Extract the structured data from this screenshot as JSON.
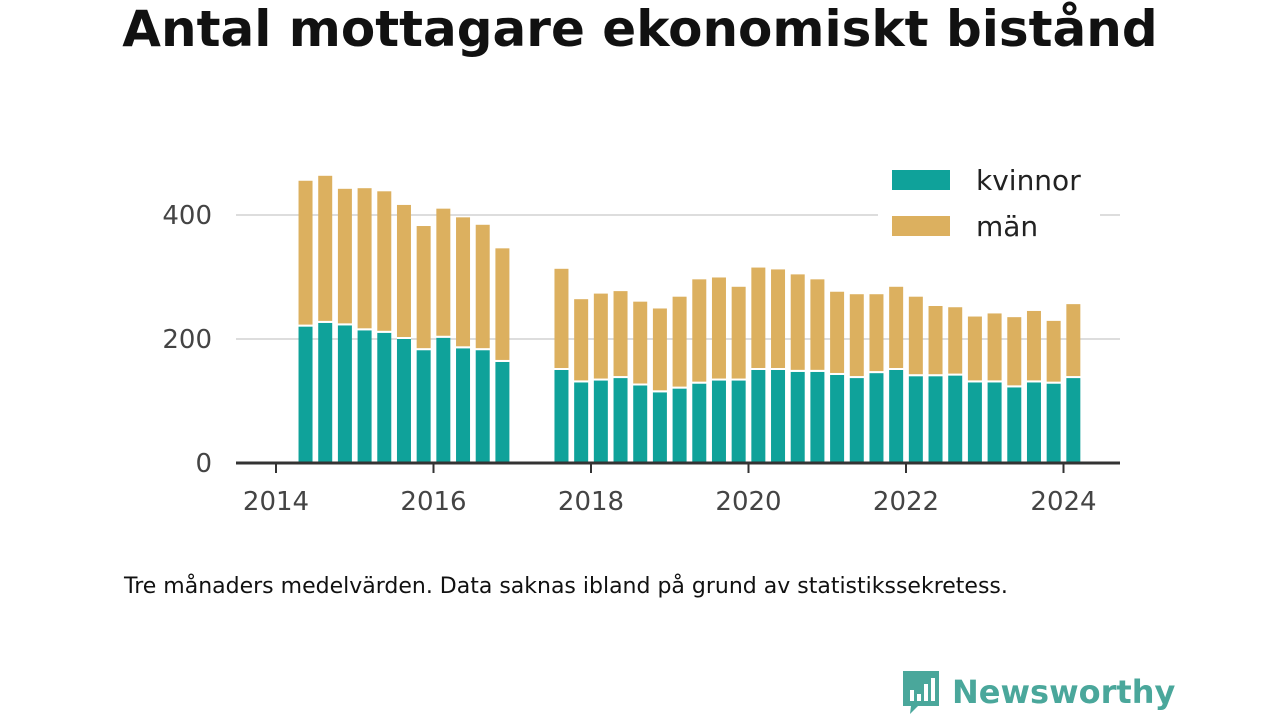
{
  "title": "Antal mottagare ekonomiskt bistånd",
  "note": "Tre månaders medelvärden. Data saknas ibland på grund av statistikssekretess.",
  "brand": "Newsworthy",
  "colors": {
    "kvinnor": "#0fa29a",
    "man": "#dcb05f",
    "grid": "#dddddd",
    "axis": "#333333",
    "brand": "#4aa79b"
  },
  "chart_data": {
    "type": "bar",
    "stacked": true,
    "x_ticks": [
      "2014",
      "2016",
      "2018",
      "2020",
      "2022",
      "2024"
    ],
    "x_tick_years": [
      2014,
      2016,
      2018,
      2020,
      2022,
      2024
    ],
    "y_ticks": [
      "0",
      "200",
      "400"
    ],
    "y_tick_values": [
      0,
      200,
      400
    ],
    "ylim": [
      0,
      480
    ],
    "xlim": [
      2013.5,
      2024.75
    ],
    "grid": true,
    "legend": [
      "kvinnor",
      "män"
    ],
    "legend_position": "top-right",
    "x": [
      2014.375,
      2014.625,
      2014.875,
      2015.125,
      2015.375,
      2015.625,
      2015.875,
      2016.125,
      2016.375,
      2016.625,
      2016.875,
      2017.625,
      2017.875,
      2018.125,
      2018.375,
      2018.625,
      2018.875,
      2019.125,
      2019.375,
      2019.625,
      2019.875,
      2020.125,
      2020.375,
      2020.625,
      2020.875,
      2021.125,
      2021.375,
      2021.625,
      2021.875,
      2022.125,
      2022.375,
      2022.625,
      2022.875,
      2023.125,
      2023.375,
      2023.625,
      2023.875,
      2024.125
    ],
    "series": [
      {
        "name": "kvinnor",
        "values": [
          220,
          226,
          222,
          214,
          210,
          200,
          182,
          202,
          185,
          182,
          163,
          150,
          130,
          133,
          137,
          125,
          114,
          120,
          128,
          133,
          133,
          150,
          150,
          147,
          147,
          142,
          137,
          145,
          150,
          140,
          140,
          141,
          130,
          130,
          122,
          130,
          128,
          137
        ]
      },
      {
        "name": "män",
        "values": [
          232,
          234,
          217,
          226,
          225,
          213,
          197,
          205,
          208,
          199,
          180,
          160,
          131,
          137,
          137,
          132,
          132,
          145,
          165,
          163,
          148,
          162,
          159,
          154,
          146,
          131,
          132,
          124,
          131,
          125,
          110,
          107,
          103,
          108,
          110,
          112,
          98,
          116
        ]
      }
    ]
  }
}
